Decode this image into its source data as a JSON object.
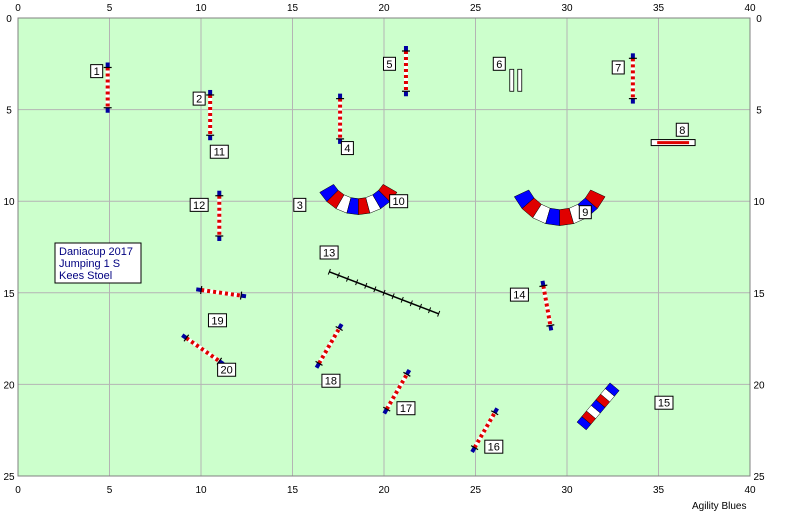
{
  "course_info": {
    "lines": [
      "Daniacup 2017",
      "Jumping 1 S",
      "Kees Stoel"
    ]
  },
  "footer": {
    "label": "Agility Blues"
  },
  "axes": {
    "x_ticks": [
      "0",
      "5",
      "10",
      "15",
      "20",
      "25",
      "30",
      "35",
      "40"
    ],
    "y_ticks": [
      "0",
      "5",
      "10",
      "15",
      "20",
      "25"
    ],
    "x_range": [
      0,
      40
    ],
    "y_range": [
      0,
      25
    ]
  },
  "colors": {
    "field": "#ccffcc",
    "grid": "#b4b4b4",
    "pole_red": "#e00000",
    "wing_blue": "#0000a0",
    "tunnel_red": "#e00000",
    "tunnel_blue": "#0000ff",
    "number_box_border": "#000000"
  },
  "obstacles": [
    {
      "num": "1",
      "type": "jump",
      "center": [
        4.9,
        3.8
      ],
      "angle": 90,
      "length": 2.2,
      "label_pos": [
        4.3,
        2.9
      ]
    },
    {
      "num": "2",
      "type": "jump",
      "center": [
        10.5,
        5.3
      ],
      "angle": 90,
      "length": 2.2,
      "label_pos": [
        9.9,
        4.4
      ]
    },
    {
      "num": "3",
      "type": "tunnel",
      "center": [
        18.6,
        8.3
      ],
      "radius": 2.0,
      "arc_from": 150,
      "arc_to": 30,
      "label_pos": [
        15.4,
        10.2
      ]
    },
    {
      "num": "4",
      "type": "jump",
      "center": [
        17.6,
        5.5
      ],
      "angle": 90,
      "length": 2.2,
      "label_pos": [
        18.0,
        7.1
      ]
    },
    {
      "num": "5",
      "type": "jump",
      "center": [
        21.2,
        2.9
      ],
      "angle": 90,
      "length": 2.2,
      "label_pos": [
        20.3,
        2.5
      ]
    },
    {
      "num": "6",
      "type": "double",
      "center": [
        27.2,
        3.4
      ],
      "angle": 90,
      "length": 1.2,
      "label_pos": [
        26.3,
        2.5
      ]
    },
    {
      "num": "7",
      "type": "jump",
      "center": [
        33.6,
        3.3
      ],
      "angle": 90,
      "length": 2.2,
      "label_pos": [
        32.8,
        2.7
      ]
    },
    {
      "num": "8",
      "type": "tire",
      "center": [
        35.8,
        6.8
      ],
      "angle": 0,
      "length": 2.4,
      "label_pos": [
        36.3,
        6.1
      ]
    },
    {
      "num": "9",
      "type": "tunnel",
      "center": [
        29.6,
        8.6
      ],
      "radius": 2.3,
      "arc_from": 155,
      "arc_to": 25,
      "label_pos": [
        31.0,
        10.6
      ]
    },
    {
      "num": "10",
      "type": "label_only",
      "label_pos": [
        20.8,
        10.0
      ]
    },
    {
      "num": "11",
      "type": "label_only",
      "label_pos": [
        11.0,
        7.3
      ]
    },
    {
      "num": "12",
      "type": "jump",
      "center": [
        11.0,
        10.8
      ],
      "angle": 90,
      "length": 2.2,
      "label_pos": [
        9.9,
        10.2
      ]
    },
    {
      "num": "13",
      "type": "walk",
      "center": [
        20.0,
        15.0
      ],
      "angle": 21,
      "length": 6.4,
      "label_pos": [
        17.0,
        12.8
      ]
    },
    {
      "num": "14",
      "type": "jump",
      "center": [
        28.9,
        15.7
      ],
      "angle": 80,
      "length": 2.2,
      "label_pos": [
        27.4,
        15.1
      ]
    },
    {
      "num": "15",
      "type": "tunnel_straight",
      "center": [
        31.7,
        21.2
      ],
      "angle": -50,
      "length": 2.8,
      "label_pos": [
        35.3,
        21.0
      ]
    },
    {
      "num": "16",
      "type": "jump",
      "center": [
        25.5,
        22.5
      ],
      "angle": -60,
      "length": 2.2,
      "label_pos": [
        26.0,
        23.4
      ]
    },
    {
      "num": "17",
      "type": "jump",
      "center": [
        20.7,
        20.4
      ],
      "angle": -60,
      "length": 2.2,
      "label_pos": [
        21.2,
        21.3
      ]
    },
    {
      "num": "18",
      "type": "jump",
      "center": [
        17.0,
        17.9
      ],
      "angle": -60,
      "length": 2.2,
      "label_pos": [
        17.1,
        19.8
      ]
    },
    {
      "num": "19",
      "type": "jump",
      "center": [
        11.1,
        15.0
      ],
      "angle": 8,
      "length": 2.2,
      "label_pos": [
        10.9,
        16.5
      ]
    },
    {
      "num": "20",
      "type": "jump",
      "center": [
        10.1,
        18.1
      ],
      "angle": 35,
      "length": 2.2,
      "label_pos": [
        11.4,
        19.2
      ]
    }
  ]
}
